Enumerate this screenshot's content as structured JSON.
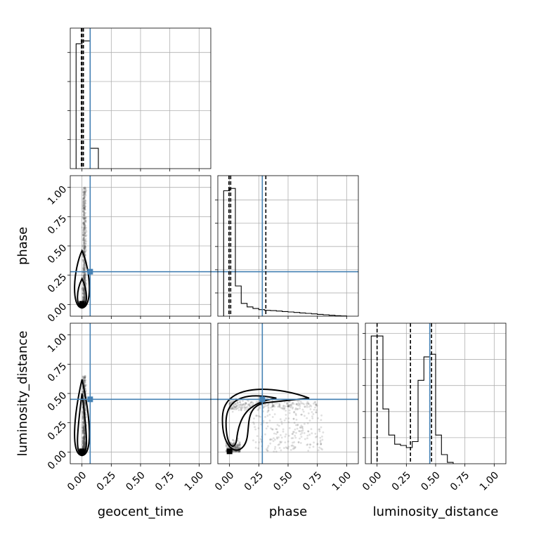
{
  "chart_data": {
    "type": "scatter",
    "title": "",
    "parameters": [
      "geocent_time",
      "phase",
      "luminosity_distance"
    ],
    "axis_range": [
      -0.1,
      1.1
    ],
    "ticks": [
      "0.00",
      "0.25",
      "0.50",
      "0.75",
      "1.00"
    ],
    "tick_values": [
      0,
      0.25,
      0.5,
      0.75,
      1.0
    ],
    "grid": true,
    "truths": [
      0.07,
      0.28,
      0.45
    ],
    "truth_color": "#4682b4",
    "quantiles": [
      [
        -0.005,
        0.0,
        0.012
      ],
      [
        -0.005,
        0.01,
        0.31
      ],
      [
        0.0,
        0.285,
        0.465
      ]
    ],
    "histograms": [
      {
        "bin_edges": [
          -0.05,
          0.0,
          0.07,
          0.14
        ],
        "counts": [
          4.3,
          4.4,
          0.7
        ]
      },
      {
        "bin_edges": [
          -0.05,
          0.0,
          0.05,
          0.1,
          0.15,
          0.2,
          0.25,
          0.3,
          0.35,
          0.4,
          0.45,
          0.5,
          0.55,
          0.6,
          0.65,
          0.7,
          0.75,
          0.8,
          0.85,
          0.9,
          0.95,
          1.0
        ],
        "counts": [
          5.4,
          5.5,
          1.3,
          0.55,
          0.4,
          0.33,
          0.28,
          0.25,
          0.24,
          0.22,
          0.2,
          0.18,
          0.16,
          0.14,
          0.12,
          0.1,
          0.08,
          0.06,
          0.04,
          0.02,
          0.01
        ]
      },
      {
        "bin_edges": [
          -0.05,
          0.0,
          0.05,
          0.1,
          0.15,
          0.2,
          0.25,
          0.3,
          0.35,
          0.4,
          0.45,
          0.5,
          0.55,
          0.6,
          0.65
        ],
        "counts": [
          4.9,
          4.9,
          2.1,
          1.1,
          0.75,
          0.7,
          0.62,
          0.85,
          3.2,
          4.1,
          4.2,
          1.1,
          0.35,
          0.05
        ]
      }
    ],
    "scatter_regions": [
      {
        "x": "geocent_time",
        "y": "phase",
        "x_center": 0.02,
        "x_spread": 0.025,
        "y_min": 0.0,
        "y_max": 1.0
      },
      {
        "x": "geocent_time",
        "y": "luminosity_distance",
        "x_center": 0.02,
        "x_spread": 0.025,
        "y_min": 0.0,
        "y_max": 0.65
      },
      {
        "x": "phase",
        "y": "luminosity_distance",
        "x_min": -0.05,
        "x_max": 1.0,
        "y_min": 0.0,
        "y_max": 0.65
      }
    ]
  }
}
